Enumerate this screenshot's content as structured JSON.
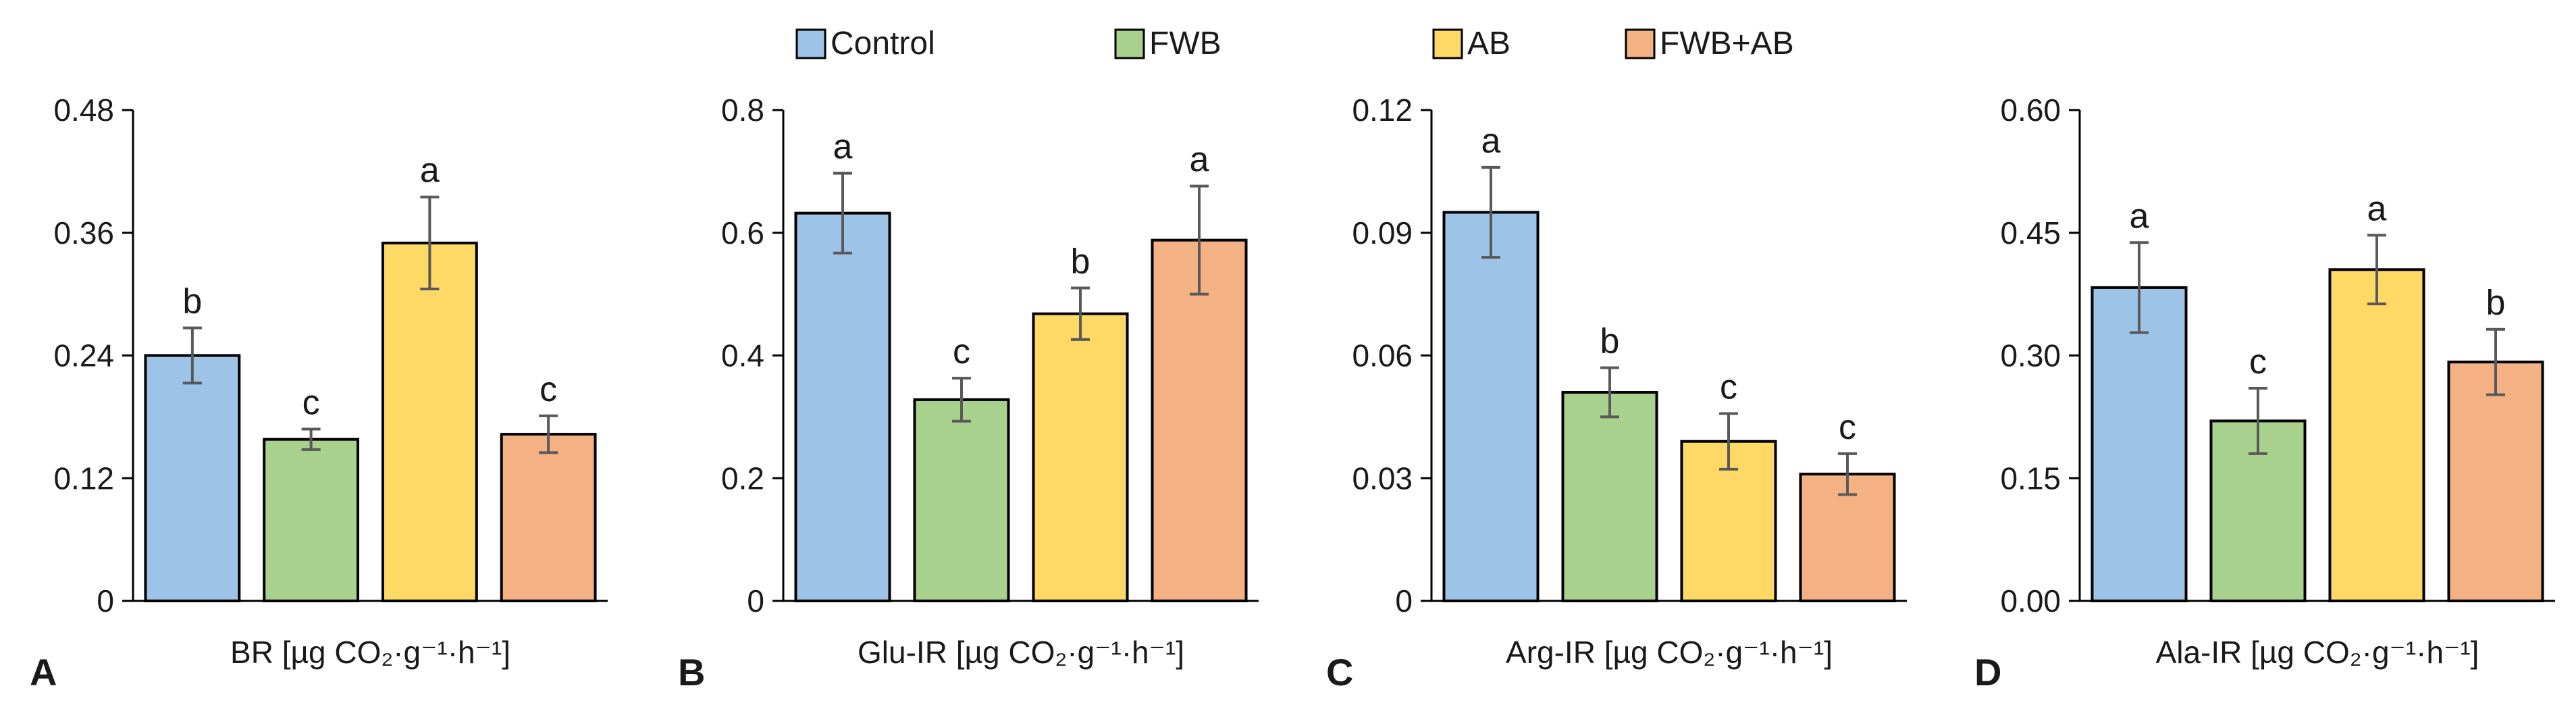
{
  "legend": [
    {
      "label": "Control",
      "color": "#9DC3E6"
    },
    {
      "label": "FWB",
      "color": "#A9D18E"
    },
    {
      "label": "AB",
      "color": "#FFD966"
    },
    {
      "label": "FWB+AB",
      "color": "#F4B183"
    }
  ],
  "chart_data": [
    {
      "type": "bar",
      "panel": "A",
      "xlabel": "BR [µg CO₂·g⁻¹·h⁻¹]",
      "ylim": [
        0,
        0.48
      ],
      "yticks": [
        "0",
        "0.12",
        "0.24",
        "0.36",
        "0.48"
      ],
      "categories": [
        "Control",
        "FWB",
        "AB",
        "FWB+AB"
      ],
      "values": [
        0.24,
        0.158,
        0.35,
        0.163
      ],
      "errors": [
        0.027,
        0.01,
        0.045,
        0.018
      ],
      "letters": [
        "b",
        "c",
        "a",
        "c"
      ]
    },
    {
      "type": "bar",
      "panel": "B",
      "xlabel": "Glu-IR [µg CO₂·g⁻¹·h⁻¹]",
      "ylim": [
        0,
        0.8
      ],
      "yticks": [
        "0",
        "0.2",
        "0.4",
        "0.6",
        "0.8"
      ],
      "categories": [
        "Control",
        "FWB",
        "AB",
        "FWB+AB"
      ],
      "values": [
        0.632,
        0.328,
        0.468,
        0.588
      ],
      "errors": [
        0.065,
        0.035,
        0.042,
        0.088
      ],
      "letters": [
        "a",
        "c",
        "b",
        "a"
      ]
    },
    {
      "type": "bar",
      "panel": "C",
      "xlabel": "Arg-IR [µg CO₂·g⁻¹·h⁻¹]",
      "ylim": [
        0,
        0.12
      ],
      "yticks": [
        "0",
        "0.03",
        "0.06",
        "0.09",
        "0.12"
      ],
      "categories": [
        "Control",
        "FWB",
        "AB",
        "FWB+AB"
      ],
      "values": [
        0.095,
        0.051,
        0.039,
        0.031
      ],
      "errors": [
        0.011,
        0.006,
        0.0068,
        0.005
      ],
      "letters": [
        "a",
        "b",
        "c",
        "c"
      ]
    },
    {
      "type": "bar",
      "panel": "D",
      "xlabel": "Ala-IR [µg CO₂·g⁻¹·h⁻¹]",
      "ylim": [
        0,
        0.6
      ],
      "yticks": [
        "0.00",
        "0.15",
        "0.30",
        "0.45",
        "0.60"
      ],
      "categories": [
        "Control",
        "FWB",
        "AB",
        "FWB+AB"
      ],
      "values": [
        0.383,
        0.22,
        0.405,
        0.292
      ],
      "errors": [
        0.055,
        0.04,
        0.042,
        0.04
      ],
      "letters": [
        "a",
        "c",
        "a",
        "b"
      ]
    }
  ]
}
